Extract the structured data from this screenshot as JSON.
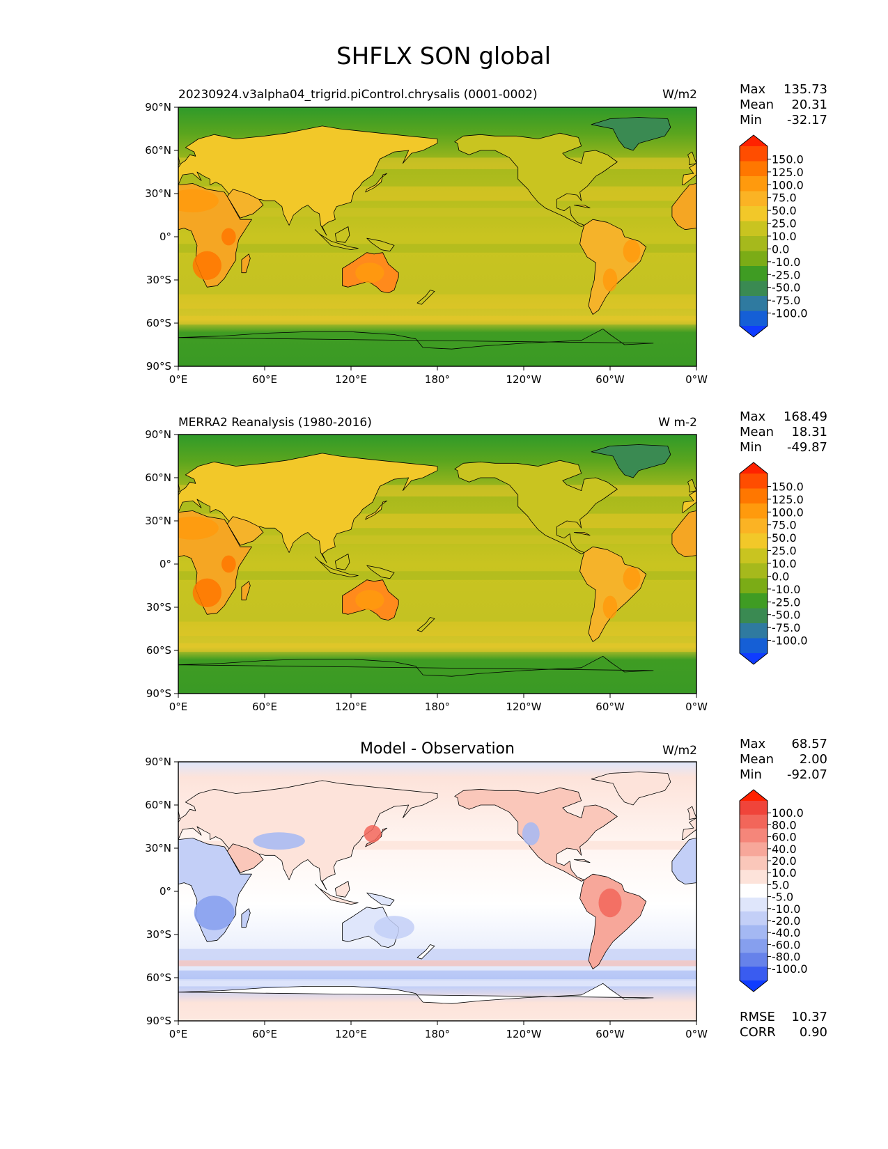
{
  "figure": {
    "title": "SHFLX SON global"
  },
  "axes": {
    "lat_ticks": [
      "90°N",
      "60°N",
      "30°N",
      "0°",
      "30°S",
      "60°S",
      "90°S"
    ],
    "lon_ticks": [
      "0°E",
      "60°E",
      "120°E",
      "180°",
      "120°W",
      "60°W",
      "0°W"
    ]
  },
  "panels": [
    {
      "id": "test",
      "left_title": "20230924.v3alpha04_trigrid.piControl.chrysalis (0001-0002)",
      "center_title": "",
      "units": "W/m2",
      "stats": {
        "max_label": "Max",
        "max": "135.73",
        "mean_label": "Mean",
        "mean": "20.31",
        "min_label": "Min",
        "min": "-32.17"
      },
      "colorbar_labels": [
        "150.0",
        "125.0",
        "100.0",
        "75.0",
        "50.0",
        "25.0",
        "10.0",
        "0.0",
        "-10.0",
        "-25.0",
        "-50.0",
        "-75.0",
        "-100.0"
      ],
      "colorbar_colors": [
        "#ff2200",
        "#ff4d00",
        "#ff7700",
        "#ff9a0d",
        "#fbb324",
        "#f2c829",
        "#c9c420",
        "#a6b91c",
        "#7bac16",
        "#3f9c23",
        "#3a8a52",
        "#2f7aa0",
        "#155fd6",
        "#0f3cff"
      ],
      "map_style": "abs"
    },
    {
      "id": "ref",
      "left_title": "MERRA2 Reanalysis (1980-2016)",
      "center_title": "",
      "units": "W m-2",
      "stats": {
        "max_label": "Max",
        "max": "168.49",
        "mean_label": "Mean",
        "mean": "18.31",
        "min_label": "Min",
        "min": "-49.87"
      },
      "colorbar_labels": [
        "150.0",
        "125.0",
        "100.0",
        "75.0",
        "50.0",
        "25.0",
        "10.0",
        "0.0",
        "-10.0",
        "-25.0",
        "-50.0",
        "-75.0",
        "-100.0"
      ],
      "colorbar_colors": [
        "#ff2200",
        "#ff4d00",
        "#ff7700",
        "#ff9a0d",
        "#fbb324",
        "#f2c829",
        "#c9c420",
        "#a6b91c",
        "#7bac16",
        "#3f9c23",
        "#3a8a52",
        "#2f7aa0",
        "#155fd6",
        "#0f3cff"
      ],
      "map_style": "abs"
    },
    {
      "id": "diff",
      "left_title": "",
      "center_title": "Model - Observation",
      "units": "W/m2",
      "stats": {
        "max_label": "Max",
        "max": "68.57",
        "mean_label": "Mean",
        "mean": "2.00",
        "min_label": "Min",
        "min": "-92.07"
      },
      "extra_stats": {
        "rmse_label": "RMSE",
        "rmse": "10.37",
        "corr_label": "CORR",
        "corr": "0.90"
      },
      "colorbar_labels": [
        "100.0",
        "80.0",
        "60.0",
        "40.0",
        "20.0",
        "10.0",
        "5.0",
        "-5.0",
        "-10.0",
        "-20.0",
        "-40.0",
        "-60.0",
        "-80.0",
        "-100.0"
      ],
      "colorbar_colors": [
        "#ff2200",
        "#f0443a",
        "#f2665a",
        "#f5867a",
        "#f7a79a",
        "#fac7ba",
        "#fde3da",
        "#ffffff",
        "#dfe6fb",
        "#c3cff7",
        "#a4b8f3",
        "#869fee",
        "#6682ea",
        "#3a5cf0",
        "#0f3cff"
      ],
      "map_style": "diff"
    }
  ]
}
